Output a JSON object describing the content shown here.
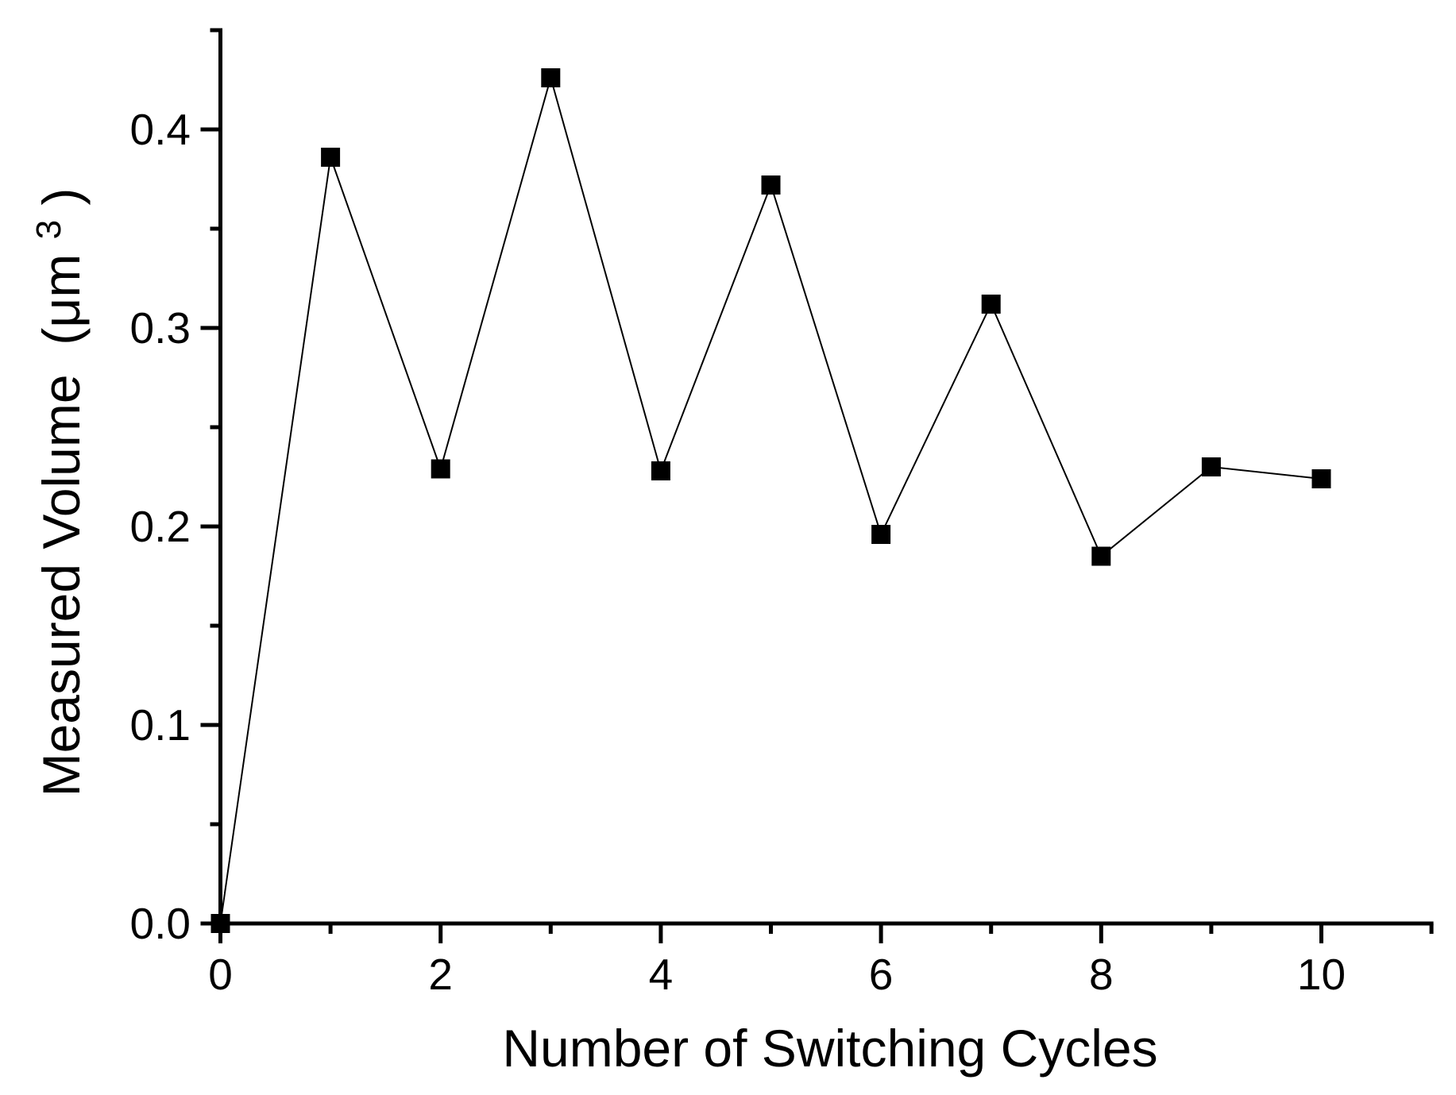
{
  "figure": {
    "background": "#ffffff",
    "foreground": "#000000"
  },
  "chart_data": {
    "type": "line",
    "title": "",
    "xlabel": "Number of Switching Cycles",
    "ylabel": "Measured Volume (μm³)",
    "ylabel_parts": {
      "prefix": "Measured Volume  (μm",
      "sup": "3",
      "suffix": ")"
    },
    "x": [
      0,
      1,
      2,
      3,
      4,
      5,
      6,
      7,
      8,
      9,
      10
    ],
    "y": [
      0.0,
      0.386,
      0.229,
      0.426,
      0.228,
      0.372,
      0.196,
      0.312,
      0.185,
      0.23,
      0.224
    ],
    "marker": "filled-square",
    "marker_color": "#000000",
    "line_color": "#000000",
    "axis_color": "#000000",
    "xlim": [
      0,
      11
    ],
    "ylim": [
      0,
      0.45
    ],
    "x_major_ticks": [
      0,
      2,
      4,
      6,
      8,
      10
    ],
    "x_major_tick_labels": [
      "0",
      "2",
      "4",
      "6",
      "8",
      "10"
    ],
    "x_minor_ticks": [
      1,
      3,
      5,
      7,
      9,
      11
    ],
    "y_major_ticks": [
      0,
      0.1,
      0.2,
      0.3,
      0.4
    ],
    "y_major_tick_labels": [
      "0.0",
      "0.1",
      "0.2",
      "0.3",
      "0.4"
    ],
    "y_minor_ticks": [
      0.05,
      0.15,
      0.25,
      0.35,
      0.45
    ],
    "grid": false,
    "legend": false
  }
}
